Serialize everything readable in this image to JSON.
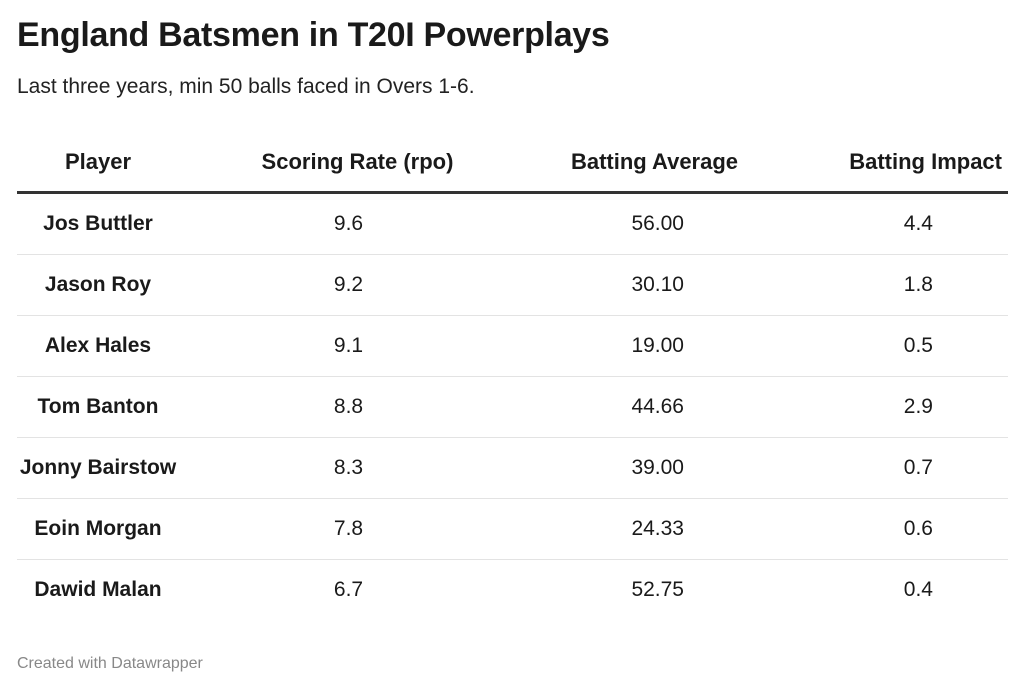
{
  "title": "England Batsmen in T20I Powerplays",
  "subtitle": "Last three years, min 50 balls faced in Overs 1-6.",
  "footer": "Created with Datawrapper",
  "chart_data": {
    "type": "table",
    "columns": [
      "Player",
      "Scoring Rate (rpo)",
      "Batting Average",
      "Batting Impact"
    ],
    "rows": [
      [
        "Jos Buttler",
        "9.6",
        "56.00",
        "4.4"
      ],
      [
        "Jason Roy",
        "9.2",
        "30.10",
        "1.8"
      ],
      [
        "Alex Hales",
        "9.1",
        "19.00",
        "0.5"
      ],
      [
        "Tom Banton",
        "8.8",
        "44.66",
        "2.9"
      ],
      [
        "Jonny Bairstow",
        "8.3",
        "39.00",
        "0.7"
      ],
      [
        "Eoin Morgan",
        "7.8",
        "24.33",
        "0.6"
      ],
      [
        "Dawid Malan",
        "6.7",
        "52.75",
        "0.4"
      ]
    ]
  },
  "colors": {
    "text": "#1a1a1a",
    "header_rule": "#333333",
    "row_rule": "#e3e3e3",
    "footer": "#888888"
  }
}
